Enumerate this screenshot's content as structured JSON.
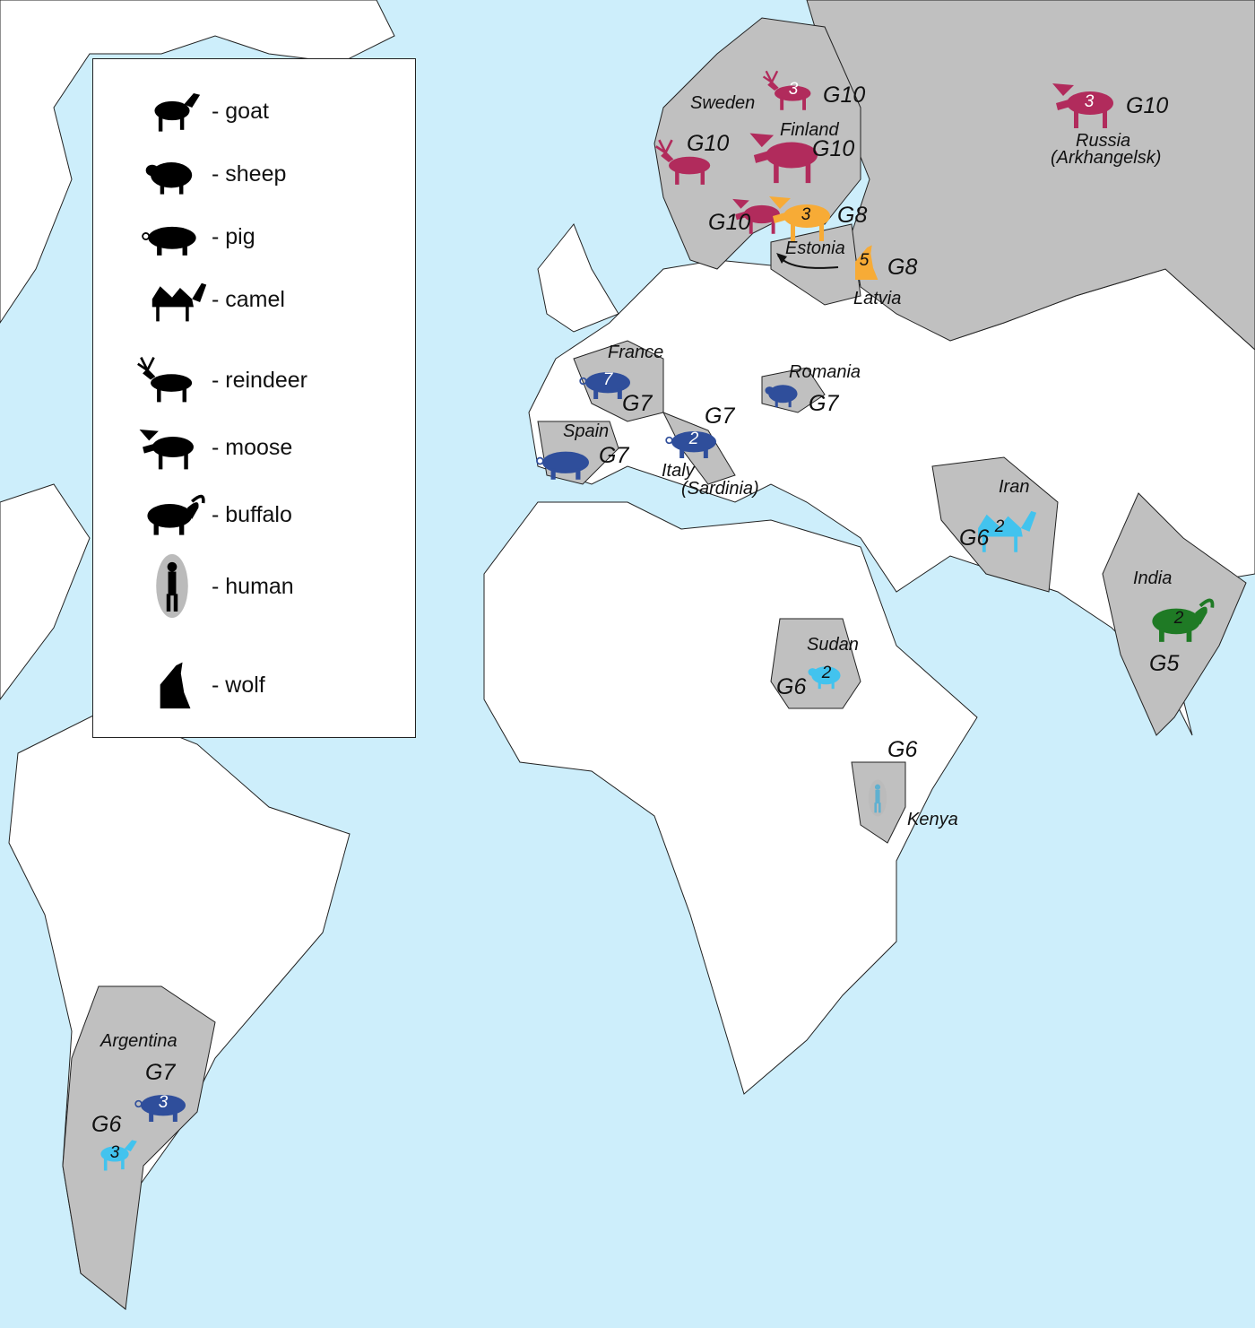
{
  "legend": {
    "items": [
      {
        "icon": "goat-icon",
        "label": "- goat"
      },
      {
        "icon": "sheep-icon",
        "label": "- sheep"
      },
      {
        "icon": "pig-icon",
        "label": "- pig"
      },
      {
        "icon": "camel-icon",
        "label": "- camel"
      },
      {
        "icon": "reindeer-icon",
        "label": "- reindeer"
      },
      {
        "icon": "moose-icon",
        "label": "- moose"
      },
      {
        "icon": "buffalo-icon",
        "label": "- buffalo"
      },
      {
        "icon": "human-icon",
        "label": "- human"
      },
      {
        "icon": "wolf-icon",
        "label": "- wolf"
      }
    ]
  },
  "colors": {
    "G10": "#b12b5c",
    "G8": "#f7ab36",
    "G7": "#2f4e9b",
    "G6": "#42c3ee",
    "G5": "#1f7a25",
    "ocean": "#cdeefb",
    "highlighted_country": "#c0c0c0",
    "other_land": "#ffffff"
  },
  "countries": [
    "Sweden",
    "Finland",
    "Russia",
    "(Arkhangelsk)",
    "Estonia",
    "Latvia",
    "France",
    "Romania",
    "Spain",
    "Italy",
    "(Sardinia)",
    "Iran",
    "India",
    "Sudan",
    "Kenya",
    "Argentina"
  ],
  "markers": [
    {
      "animal": "reindeer",
      "count": "3",
      "genotype": "G10",
      "country": "Finland"
    },
    {
      "animal": "reindeer",
      "count": "",
      "genotype": "G10",
      "country": "Sweden"
    },
    {
      "animal": "moose",
      "count": "",
      "genotype": "G10",
      "country": "Finland"
    },
    {
      "animal": "moose",
      "count": "",
      "genotype": "G10",
      "country": "Estonia"
    },
    {
      "animal": "moose",
      "count": "3",
      "genotype": "G8",
      "country": "Estonia"
    },
    {
      "animal": "wolf",
      "count": "5",
      "genotype": "G8",
      "country": "Latvia"
    },
    {
      "animal": "moose",
      "count": "3",
      "genotype": "G10",
      "country": "Russia (Arkhangelsk)"
    },
    {
      "animal": "pig",
      "count": "7",
      "genotype": "G7",
      "country": "France"
    },
    {
      "animal": "sheep",
      "count": "",
      "genotype": "G7",
      "country": "Romania"
    },
    {
      "animal": "pig",
      "count": "",
      "genotype": "G7",
      "country": "Spain"
    },
    {
      "animal": "pig",
      "count": "2",
      "genotype": "G7",
      "country": "Italy (Sardinia)"
    },
    {
      "animal": "camel",
      "count": "2",
      "genotype": "G6",
      "country": "Iran"
    },
    {
      "animal": "buffalo",
      "count": "2",
      "genotype": "G5",
      "country": "India"
    },
    {
      "animal": "sheep",
      "count": "2",
      "genotype": "G6",
      "country": "Sudan"
    },
    {
      "animal": "human",
      "count": "",
      "genotype": "G6",
      "country": "Kenya"
    },
    {
      "animal": "pig",
      "count": "3",
      "genotype": "G7",
      "country": "Argentina"
    },
    {
      "animal": "goat",
      "count": "3",
      "genotype": "G6",
      "country": "Argentina"
    }
  ]
}
